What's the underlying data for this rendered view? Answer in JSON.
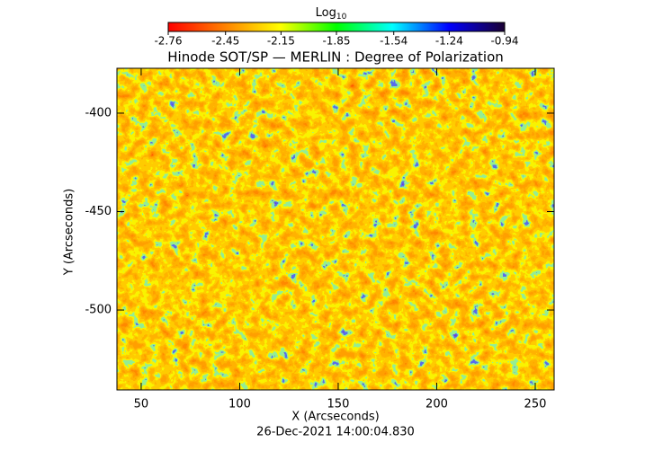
{
  "chart_data": {
    "type": "heatmap",
    "title": "Hinode SOT/SP — MERLIN : Degree of Polarization",
    "colorbar_label": "Log",
    "colorbar_label_sub": "10",
    "colormap": [
      "#ff0000",
      "#ff8000",
      "#ffff00",
      "#00ff00",
      "#00ffff",
      "#0000ff",
      "#1a0033"
    ],
    "clim": [
      -2.76,
      -0.94
    ],
    "cticks": [
      -2.76,
      -2.45,
      -2.15,
      -1.85,
      -1.54,
      -1.24,
      -0.94
    ],
    "xlabel": "X (Arcseconds)",
    "ylabel": "Y (Arcseconds)",
    "xlim": [
      37.7,
      259.6
    ],
    "xticks": [
      50,
      100,
      150,
      200,
      250
    ],
    "ylim": [
      -540.6,
      -377.2
    ],
    "yticks": [
      -500,
      -450,
      -400
    ],
    "footer": "26-Dec-2021 14:00:04.830"
  }
}
